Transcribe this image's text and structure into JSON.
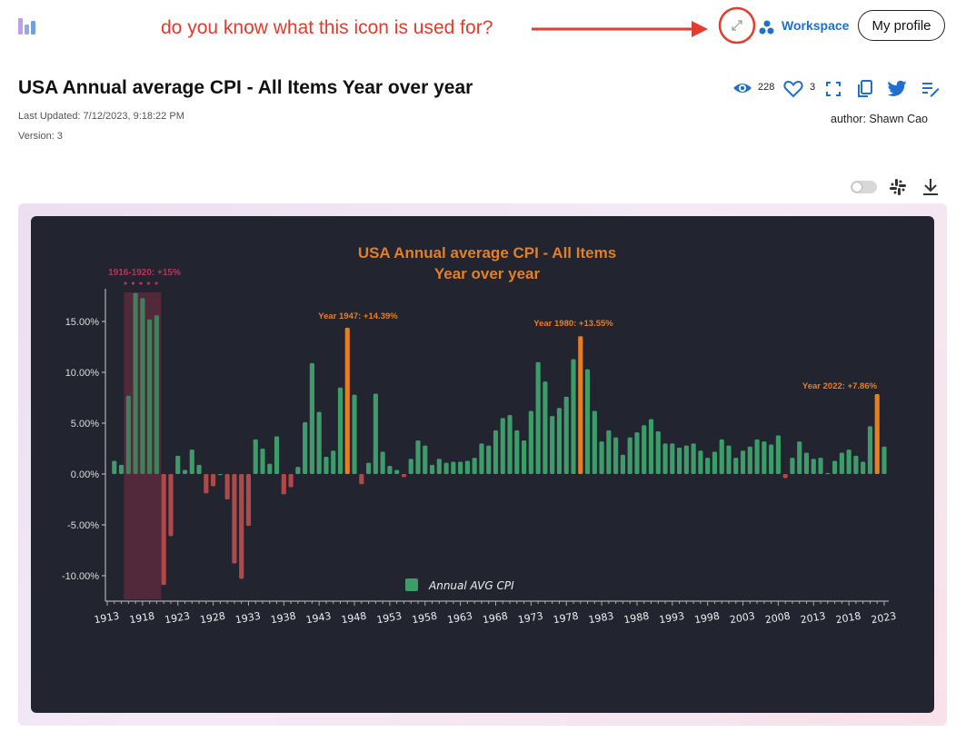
{
  "header": {
    "annotation": "do you know what this icon is used for?",
    "workspace_label": "Workspace",
    "profile_label": "My profile",
    "brand_color": "#1f6fd1"
  },
  "page": {
    "title": "USA Annual average CPI - All Items Year over year",
    "last_updated": "Last Updated: 7/12/2023, 9:18:22 PM",
    "version": "Version: 3",
    "author": "author: Shawn Cao",
    "views": "228",
    "likes": "3"
  },
  "icons": [
    "app-logo",
    "expand-icon",
    "workspace-icon",
    "eye-icon",
    "heart-icon",
    "fullscreen-icon",
    "copy-icon",
    "twitter-icon",
    "edit-list-icon",
    "toggle-switch",
    "slack-icon",
    "download-icon"
  ],
  "chart_data": {
    "type": "bar",
    "title_line1": "USA Annual average CPI - All Items",
    "title_line2": "Year over year",
    "ylim": [
      -12,
      18
    ],
    "y_ticks": [
      "15.00%",
      "10.00%",
      "5.00%",
      "0.00%",
      "-5.00%",
      "-10.00%"
    ],
    "x_tick_labels": [
      "1913",
      "1918",
      "1923",
      "1928",
      "1933",
      "1938",
      "1943",
      "1948",
      "1953",
      "1958",
      "1963",
      "1968",
      "1973",
      "1978",
      "1983",
      "1988",
      "1993",
      "1998",
      "2003",
      "2008",
      "2013",
      "2018",
      "2023"
    ],
    "x_start": 1913,
    "legend": "Annual AVG CPI",
    "colors": {
      "positive": "#3d9d6a",
      "negative": "#b04a4a",
      "highlight": "#e67e22",
      "shade": "#5a2a3c",
      "title": "#e67e22",
      "shade_label": "#c0305a"
    },
    "annotations": {
      "shade": "1916-1920: +15%",
      "y1947": "Year 1947: +14.39%",
      "y1980": "Year 1980: +13.55%",
      "y2022": "Year 2022: +7.86%"
    },
    "highlight_years": [
      1947,
      1980,
      2022
    ],
    "shaded_range": [
      1916,
      1920
    ],
    "series": [
      {
        "name": "Annual AVG CPI",
        "x": [
          1914,
          1915,
          1916,
          1917,
          1918,
          1919,
          1920,
          1921,
          1922,
          1923,
          1924,
          1925,
          1926,
          1927,
          1928,
          1929,
          1930,
          1931,
          1932,
          1933,
          1934,
          1935,
          1936,
          1937,
          1938,
          1939,
          1940,
          1941,
          1942,
          1943,
          1944,
          1945,
          1946,
          1947,
          1948,
          1949,
          1950,
          1951,
          1952,
          1953,
          1954,
          1955,
          1956,
          1957,
          1958,
          1959,
          1960,
          1961,
          1962,
          1963,
          1964,
          1965,
          1966,
          1967,
          1968,
          1969,
          1970,
          1971,
          1972,
          1973,
          1974,
          1975,
          1976,
          1977,
          1978,
          1979,
          1980,
          1981,
          1982,
          1983,
          1984,
          1985,
          1986,
          1987,
          1988,
          1989,
          1990,
          1991,
          1992,
          1993,
          1994,
          1995,
          1996,
          1997,
          1998,
          1999,
          2000,
          2001,
          2002,
          2003,
          2004,
          2005,
          2006,
          2007,
          2008,
          2009,
          2010,
          2011,
          2012,
          2013,
          2014,
          2015,
          2016,
          2017,
          2018,
          2019,
          2020,
          2021,
          2022,
          2023
        ],
        "values": [
          1.3,
          0.9,
          7.7,
          17.8,
          17.3,
          15.2,
          15.6,
          -10.9,
          -6.1,
          1.8,
          0.4,
          2.4,
          0.9,
          -1.9,
          -1.2,
          0.0,
          -2.5,
          -8.8,
          -10.3,
          -5.1,
          3.4,
          2.5,
          1.0,
          3.7,
          -2.0,
          -1.3,
          0.7,
          5.1,
          10.9,
          6.1,
          1.7,
          2.3,
          8.5,
          14.39,
          7.8,
          -1.0,
          1.1,
          7.9,
          2.2,
          0.8,
          0.4,
          -0.3,
          1.5,
          3.3,
          2.8,
          0.9,
          1.5,
          1.1,
          1.2,
          1.2,
          1.3,
          1.6,
          3.0,
          2.8,
          4.3,
          5.5,
          5.8,
          4.3,
          3.3,
          6.2,
          11.0,
          9.1,
          5.7,
          6.5,
          7.6,
          11.3,
          13.55,
          10.3,
          6.2,
          3.2,
          4.3,
          3.6,
          1.9,
          3.6,
          4.1,
          4.8,
          5.4,
          4.2,
          3.0,
          3.0,
          2.6,
          2.8,
          3.0,
          2.3,
          1.6,
          2.2,
          3.4,
          2.8,
          1.6,
          2.3,
          2.7,
          3.4,
          3.2,
          2.9,
          3.8,
          -0.4,
          1.6,
          3.2,
          2.1,
          1.5,
          1.6,
          0.1,
          1.3,
          2.1,
          2.4,
          1.8,
          1.2,
          4.7,
          7.86,
          2.7
        ]
      }
    ]
  }
}
